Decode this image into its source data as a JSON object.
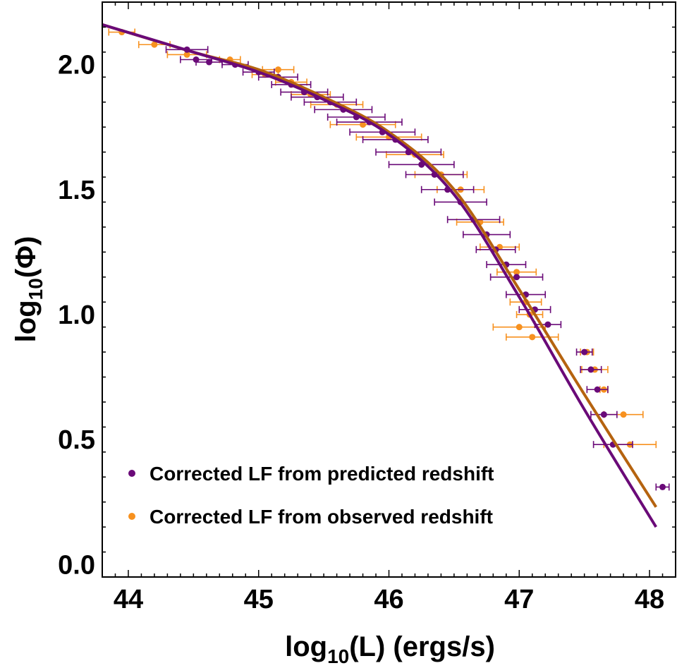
{
  "chart_data": {
    "type": "scatter",
    "title": "",
    "xlabel": "log10(L) (ergs/s)",
    "xlabel_parts": {
      "base": "log",
      "sub": "10",
      "rest": "(L) (ergs/s)"
    },
    "ylabel": "log10(Φ)",
    "ylabel_parts": {
      "base": "log",
      "sub": "10",
      "rest": "(Φ)"
    },
    "xlim": [
      43.8,
      48.2
    ],
    "ylim": [
      -0.05,
      2.25
    ],
    "x_ticks": [
      44,
      45,
      46,
      47,
      48
    ],
    "x_tick_labels": [
      "44",
      "45",
      "46",
      "47",
      "48"
    ],
    "y_ticks": [
      0.0,
      0.5,
      1.0,
      1.5,
      2.0
    ],
    "y_tick_labels": [
      "0.0",
      "0.5",
      "1.0",
      "1.5",
      "2.0"
    ],
    "grid": false,
    "legend_position": "bottom-left",
    "colors": {
      "predicted": "#6a0a78",
      "observed": "#f7911f",
      "observed_fit": "#b5630f"
    },
    "series": [
      {
        "name": "Corrected LF from predicted redshift",
        "color": "#6a0a78",
        "fit": [
          [
            43.8,
            2.16
          ],
          [
            44.5,
            2.05
          ],
          [
            45.0,
            1.97
          ],
          [
            45.5,
            1.86
          ],
          [
            46.0,
            1.72
          ],
          [
            46.5,
            1.48
          ],
          [
            47.0,
            1.07
          ],
          [
            47.5,
            0.62
          ],
          [
            48.05,
            0.15
          ]
        ],
        "points": [
          {
            "x": 44.45,
            "y": 2.06,
            "xerr": 0.16
          },
          {
            "x": 44.52,
            "y": 2.02,
            "xerr": 0.12
          },
          {
            "x": 44.62,
            "y": 2.01,
            "xerr": 0.1
          },
          {
            "x": 44.82,
            "y": 2.0,
            "xerr": 0.1
          },
          {
            "x": 45.0,
            "y": 1.97,
            "xerr": 0.12
          },
          {
            "x": 45.15,
            "y": 1.95,
            "xerr": 0.15
          },
          {
            "x": 45.25,
            "y": 1.92,
            "xerr": 0.15
          },
          {
            "x": 45.35,
            "y": 1.89,
            "xerr": 0.18
          },
          {
            "x": 45.45,
            "y": 1.87,
            "xerr": 0.2
          },
          {
            "x": 45.55,
            "y": 1.85,
            "xerr": 0.2
          },
          {
            "x": 45.65,
            "y": 1.82,
            "xerr": 0.22
          },
          {
            "x": 45.75,
            "y": 1.79,
            "xerr": 0.22
          },
          {
            "x": 45.85,
            "y": 1.77,
            "xerr": 0.25
          },
          {
            "x": 45.95,
            "y": 1.73,
            "xerr": 0.25
          },
          {
            "x": 46.05,
            "y": 1.7,
            "xerr": 0.25
          },
          {
            "x": 46.15,
            "y": 1.65,
            "xerr": 0.25
          },
          {
            "x": 46.25,
            "y": 1.6,
            "xerr": 0.25
          },
          {
            "x": 46.35,
            "y": 1.56,
            "xerr": 0.22
          },
          {
            "x": 46.45,
            "y": 1.5,
            "xerr": 0.2
          },
          {
            "x": 46.55,
            "y": 1.45,
            "xerr": 0.2
          },
          {
            "x": 46.65,
            "y": 1.38,
            "xerr": 0.2
          },
          {
            "x": 46.75,
            "y": 1.32,
            "xerr": 0.18
          },
          {
            "x": 46.82,
            "y": 1.26,
            "xerr": 0.15
          },
          {
            "x": 46.9,
            "y": 1.2,
            "xerr": 0.15
          },
          {
            "x": 46.98,
            "y": 1.15,
            "xerr": 0.2
          },
          {
            "x": 47.05,
            "y": 1.08,
            "xerr": 0.15
          },
          {
            "x": 47.12,
            "y": 1.02,
            "xerr": 0.12
          },
          {
            "x": 47.22,
            "y": 0.96,
            "xerr": 0.1
          },
          {
            "x": 47.5,
            "y": 0.85,
            "xerr": 0.06
          },
          {
            "x": 47.55,
            "y": 0.78,
            "xerr": 0.08
          },
          {
            "x": 47.6,
            "y": 0.7,
            "xerr": 0.08
          },
          {
            "x": 47.65,
            "y": 0.6,
            "xerr": 0.1
          },
          {
            "x": 47.72,
            "y": 0.48,
            "xerr": 0.15
          },
          {
            "x": 48.1,
            "y": 0.31,
            "xerr": 0.05
          }
        ]
      },
      {
        "name": "Corrected LF from observed redshift",
        "color": "#f7911f",
        "fit": [
          [
            43.8,
            2.16
          ],
          [
            44.5,
            2.05
          ],
          [
            45.0,
            1.98
          ],
          [
            45.5,
            1.87
          ],
          [
            46.0,
            1.73
          ],
          [
            46.5,
            1.5
          ],
          [
            47.0,
            1.1
          ],
          [
            47.5,
            0.68
          ],
          [
            48.05,
            0.23
          ]
        ],
        "points": [
          {
            "x": 43.95,
            "y": 2.13,
            "xerr": 0.1
          },
          {
            "x": 44.2,
            "y": 2.08,
            "xerr": 0.12
          },
          {
            "x": 44.45,
            "y": 2.04,
            "xerr": 0.15
          },
          {
            "x": 44.78,
            "y": 2.02,
            "xerr": 0.08
          },
          {
            "x": 45.05,
            "y": 1.96,
            "xerr": 0.1
          },
          {
            "x": 45.15,
            "y": 1.98,
            "xerr": 0.12
          },
          {
            "x": 45.25,
            "y": 1.93,
            "xerr": 0.12
          },
          {
            "x": 45.4,
            "y": 1.88,
            "xerr": 0.15
          },
          {
            "x": 45.6,
            "y": 1.84,
            "xerr": 0.2
          },
          {
            "x": 45.8,
            "y": 1.76,
            "xerr": 0.25
          },
          {
            "x": 46.0,
            "y": 1.71,
            "xerr": 0.25
          },
          {
            "x": 46.2,
            "y": 1.64,
            "xerr": 0.22
          },
          {
            "x": 46.4,
            "y": 1.56,
            "xerr": 0.2
          },
          {
            "x": 46.55,
            "y": 1.5,
            "xerr": 0.18
          },
          {
            "x": 46.7,
            "y": 1.37,
            "xerr": 0.18
          },
          {
            "x": 46.85,
            "y": 1.27,
            "xerr": 0.15
          },
          {
            "x": 46.98,
            "y": 1.17,
            "xerr": 0.15
          },
          {
            "x": 47.05,
            "y": 1.05,
            "xerr": 0.12
          },
          {
            "x": 47.08,
            "y": 1.0,
            "xerr": 0.1
          },
          {
            "x": 47.0,
            "y": 0.95,
            "xerr": 0.2
          },
          {
            "x": 47.1,
            "y": 0.91,
            "xerr": 0.2
          },
          {
            "x": 47.52,
            "y": 0.85,
            "xerr": 0.05
          },
          {
            "x": 47.58,
            "y": 0.78,
            "xerr": 0.1
          },
          {
            "x": 47.65,
            "y": 0.7,
            "xerr": 0.03
          },
          {
            "x": 47.8,
            "y": 0.6,
            "xerr": 0.15
          },
          {
            "x": 47.85,
            "y": 0.48,
            "xerr": 0.2
          }
        ]
      }
    ]
  }
}
